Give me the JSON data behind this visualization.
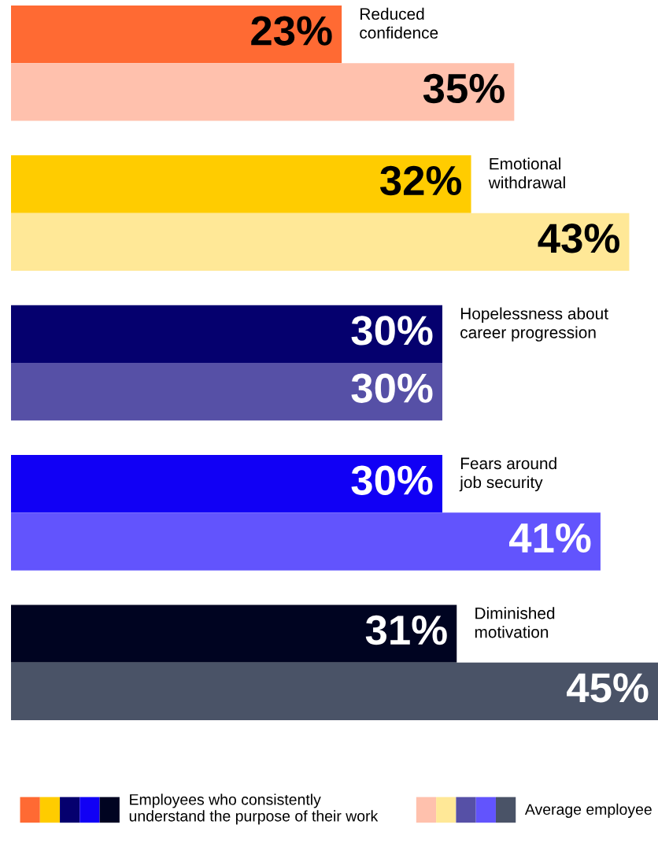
{
  "chart_data": {
    "type": "bar",
    "orientation": "horizontal",
    "categories": [
      "Reduced confidence",
      "Emotional withdrawal",
      "Hopelessness about career progression",
      "Fears around job security",
      "Diminished motivation"
    ],
    "series": [
      {
        "name": "Employees who consistently understand the purpose of their work",
        "colors": [
          "#ff6a33",
          "#ffcc00",
          "#05006e",
          "#1100f5",
          "#000421"
        ],
        "values": [
          23,
          32,
          30,
          30,
          31
        ],
        "value_labels": [
          "23%",
          "32%",
          "30%",
          "30%",
          "31%"
        ]
      },
      {
        "name": "Average employee",
        "colors": [
          "#ffc1ad",
          "#ffe897",
          "#5650a6",
          "#6254fd",
          "#4a5367"
        ],
        "values": [
          35,
          43,
          30,
          41,
          45
        ],
        "value_labels": [
          "35%",
          "43%",
          "30%",
          "41%",
          "45%"
        ]
      }
    ],
    "tick_labels": false,
    "legend": "bottom"
  }
}
